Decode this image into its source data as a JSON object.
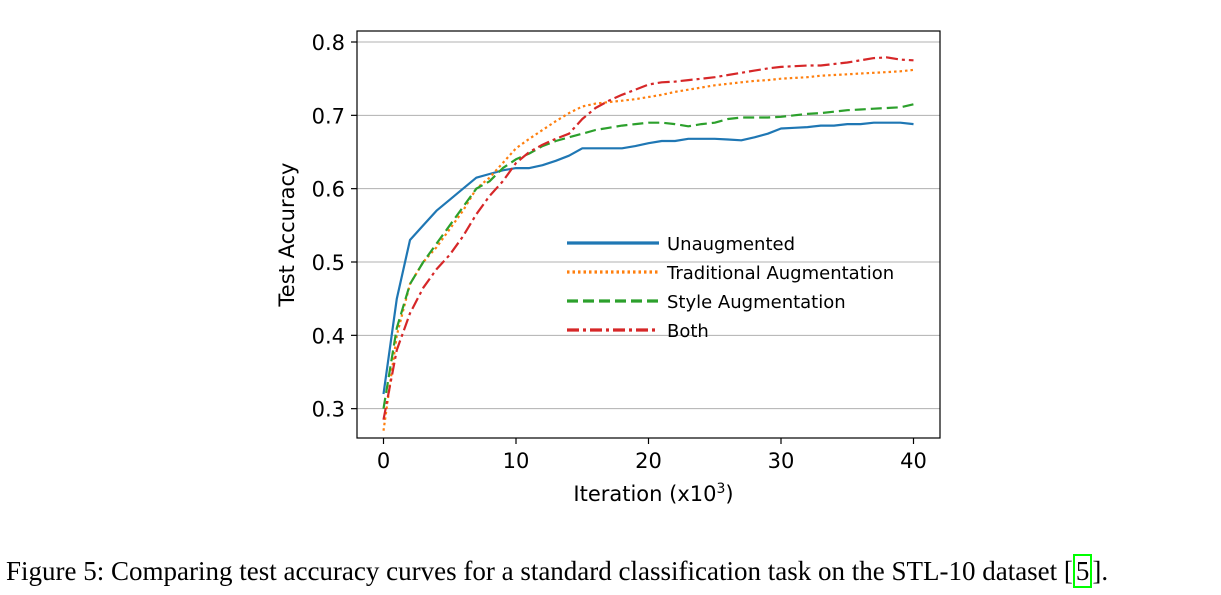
{
  "chart_data": {
    "type": "line",
    "xlabel": "Iteration (x10",
    "xlabel_sup": "3",
    "xlabel_close": ")",
    "ylabel": "Test Accuracy",
    "xlim": [
      -2,
      42
    ],
    "ylim": [
      0.26,
      0.815
    ],
    "xticks": [
      0,
      10,
      20,
      30,
      40
    ],
    "yticks": [
      0.3,
      0.4,
      0.5,
      0.6,
      0.7,
      0.8
    ],
    "ytick_labels": [
      "0.3",
      "0.4",
      "0.5",
      "0.6",
      "0.7",
      "0.8"
    ],
    "grid": "horizontal",
    "legend_position": "center-right",
    "series": [
      {
        "name": "Unaugmented",
        "color": "#1f77b4",
        "style": "solid",
        "x": [
          0,
          1,
          2,
          3,
          4,
          5,
          6,
          7,
          8,
          9,
          10,
          11,
          12,
          13,
          14,
          15,
          16,
          17,
          18,
          19,
          20,
          21,
          22,
          23,
          24,
          25,
          26,
          27,
          28,
          29,
          30,
          31,
          32,
          33,
          34,
          35,
          36,
          37,
          38,
          39,
          40
        ],
        "y": [
          0.32,
          0.45,
          0.53,
          0.55,
          0.57,
          0.585,
          0.6,
          0.615,
          0.62,
          0.625,
          0.628,
          0.628,
          0.632,
          0.638,
          0.645,
          0.655,
          0.655,
          0.655,
          0.655,
          0.658,
          0.662,
          0.665,
          0.665,
          0.668,
          0.668,
          0.668,
          0.667,
          0.666,
          0.67,
          0.675,
          0.682,
          0.683,
          0.684,
          0.686,
          0.686,
          0.688,
          0.688,
          0.69,
          0.69,
          0.69,
          0.688
        ]
      },
      {
        "name": "Traditional Augmentation",
        "color": "#ff7f0e",
        "style": "dotted",
        "x": [
          0,
          1,
          2,
          3,
          4,
          5,
          6,
          7,
          8,
          9,
          10,
          11,
          12,
          13,
          14,
          15,
          16,
          17,
          18,
          19,
          20,
          21,
          22,
          23,
          24,
          25,
          26,
          27,
          28,
          29,
          30,
          31,
          32,
          33,
          34,
          35,
          36,
          37,
          38,
          39,
          40
        ],
        "y": [
          0.27,
          0.4,
          0.47,
          0.5,
          0.52,
          0.545,
          0.57,
          0.6,
          0.615,
          0.635,
          0.655,
          0.668,
          0.68,
          0.692,
          0.703,
          0.712,
          0.716,
          0.718,
          0.72,
          0.722,
          0.725,
          0.728,
          0.732,
          0.735,
          0.738,
          0.741,
          0.743,
          0.745,
          0.747,
          0.748,
          0.75,
          0.751,
          0.752,
          0.754,
          0.755,
          0.756,
          0.757,
          0.758,
          0.759,
          0.76,
          0.762
        ]
      },
      {
        "name": "Style Augmentation",
        "color": "#2ca02c",
        "style": "dashed",
        "x": [
          0,
          1,
          2,
          3,
          4,
          5,
          6,
          7,
          8,
          9,
          10,
          11,
          12,
          13,
          14,
          15,
          16,
          17,
          18,
          19,
          20,
          21,
          22,
          23,
          24,
          25,
          26,
          27,
          28,
          29,
          30,
          31,
          32,
          33,
          34,
          35,
          36,
          37,
          38,
          39,
          40
        ],
        "y": [
          0.3,
          0.41,
          0.47,
          0.5,
          0.525,
          0.55,
          0.575,
          0.6,
          0.61,
          0.628,
          0.64,
          0.648,
          0.658,
          0.665,
          0.67,
          0.675,
          0.68,
          0.683,
          0.686,
          0.688,
          0.69,
          0.69,
          0.688,
          0.685,
          0.688,
          0.69,
          0.695,
          0.697,
          0.697,
          0.697,
          0.698,
          0.7,
          0.702,
          0.703,
          0.705,
          0.707,
          0.708,
          0.709,
          0.71,
          0.711,
          0.715
        ]
      },
      {
        "name": "Both",
        "color": "#d62728",
        "style": "dashdot",
        "x": [
          0,
          1,
          2,
          3,
          4,
          5,
          6,
          7,
          8,
          9,
          10,
          11,
          12,
          13,
          14,
          15,
          16,
          17,
          18,
          19,
          20,
          21,
          22,
          23,
          24,
          25,
          26,
          27,
          28,
          29,
          30,
          31,
          32,
          33,
          34,
          35,
          36,
          37,
          38,
          39,
          40
        ],
        "y": [
          0.285,
          0.38,
          0.43,
          0.465,
          0.49,
          0.51,
          0.535,
          0.565,
          0.59,
          0.61,
          0.635,
          0.65,
          0.66,
          0.668,
          0.675,
          0.695,
          0.71,
          0.72,
          0.728,
          0.735,
          0.742,
          0.745,
          0.746,
          0.748,
          0.75,
          0.752,
          0.755,
          0.758,
          0.761,
          0.764,
          0.766,
          0.767,
          0.768,
          0.768,
          0.77,
          0.772,
          0.775,
          0.778,
          0.779,
          0.776,
          0.775
        ]
      }
    ]
  },
  "caption": {
    "prefix": "Figure 5: Comparing test accuracy curves for a standard classification task on the STL-10 dataset [",
    "cite": "5",
    "suffix": "]."
  }
}
